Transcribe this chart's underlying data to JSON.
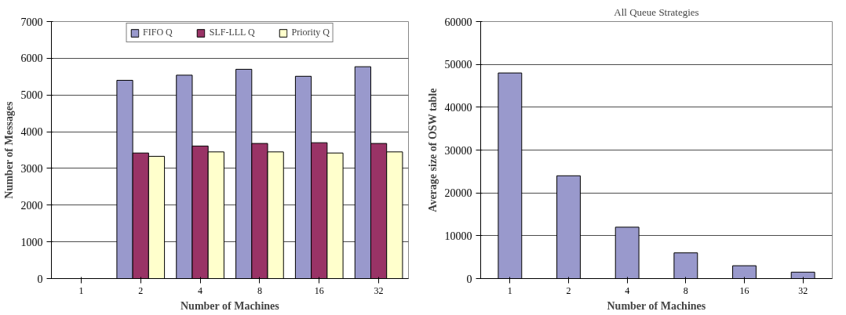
{
  "chart_data": [
    {
      "type": "bar",
      "categories": [
        "1",
        "2",
        "4",
        "8",
        "16",
        "32"
      ],
      "xlabel": "Number of Machines",
      "ylabel": "Number of Messages",
      "ylim": [
        0,
        7000
      ],
      "yticks": [
        0,
        1000,
        2000,
        3000,
        4000,
        5000,
        6000,
        7000
      ],
      "grid": "y",
      "legend": "top",
      "series": [
        {
          "name": "FIFO Q",
          "color": "#9999cc",
          "values": [
            null,
            5400,
            5540,
            5700,
            5510,
            5770
          ]
        },
        {
          "name": "SLF-LLL Q",
          "color": "#993366",
          "values": [
            null,
            3420,
            3610,
            3680,
            3700,
            3680
          ]
        },
        {
          "name": "Priority Q",
          "color": "#ffffcc",
          "values": [
            null,
            3330,
            3450,
            3450,
            3420,
            3450
          ]
        }
      ]
    },
    {
      "type": "bar",
      "title": "All Queue Strategies",
      "categories": [
        "1",
        "2",
        "4",
        "8",
        "16",
        "32"
      ],
      "xlabel": "Number of Machines",
      "ylabel": "Average size of OSW table",
      "ylim": [
        0,
        60000
      ],
      "yticks": [
        0,
        10000,
        20000,
        30000,
        40000,
        50000,
        60000
      ],
      "grid": "y",
      "series": [
        {
          "color": "#9999cc",
          "values": [
            48000,
            24000,
            12000,
            6000,
            3000,
            1500
          ]
        }
      ]
    }
  ]
}
